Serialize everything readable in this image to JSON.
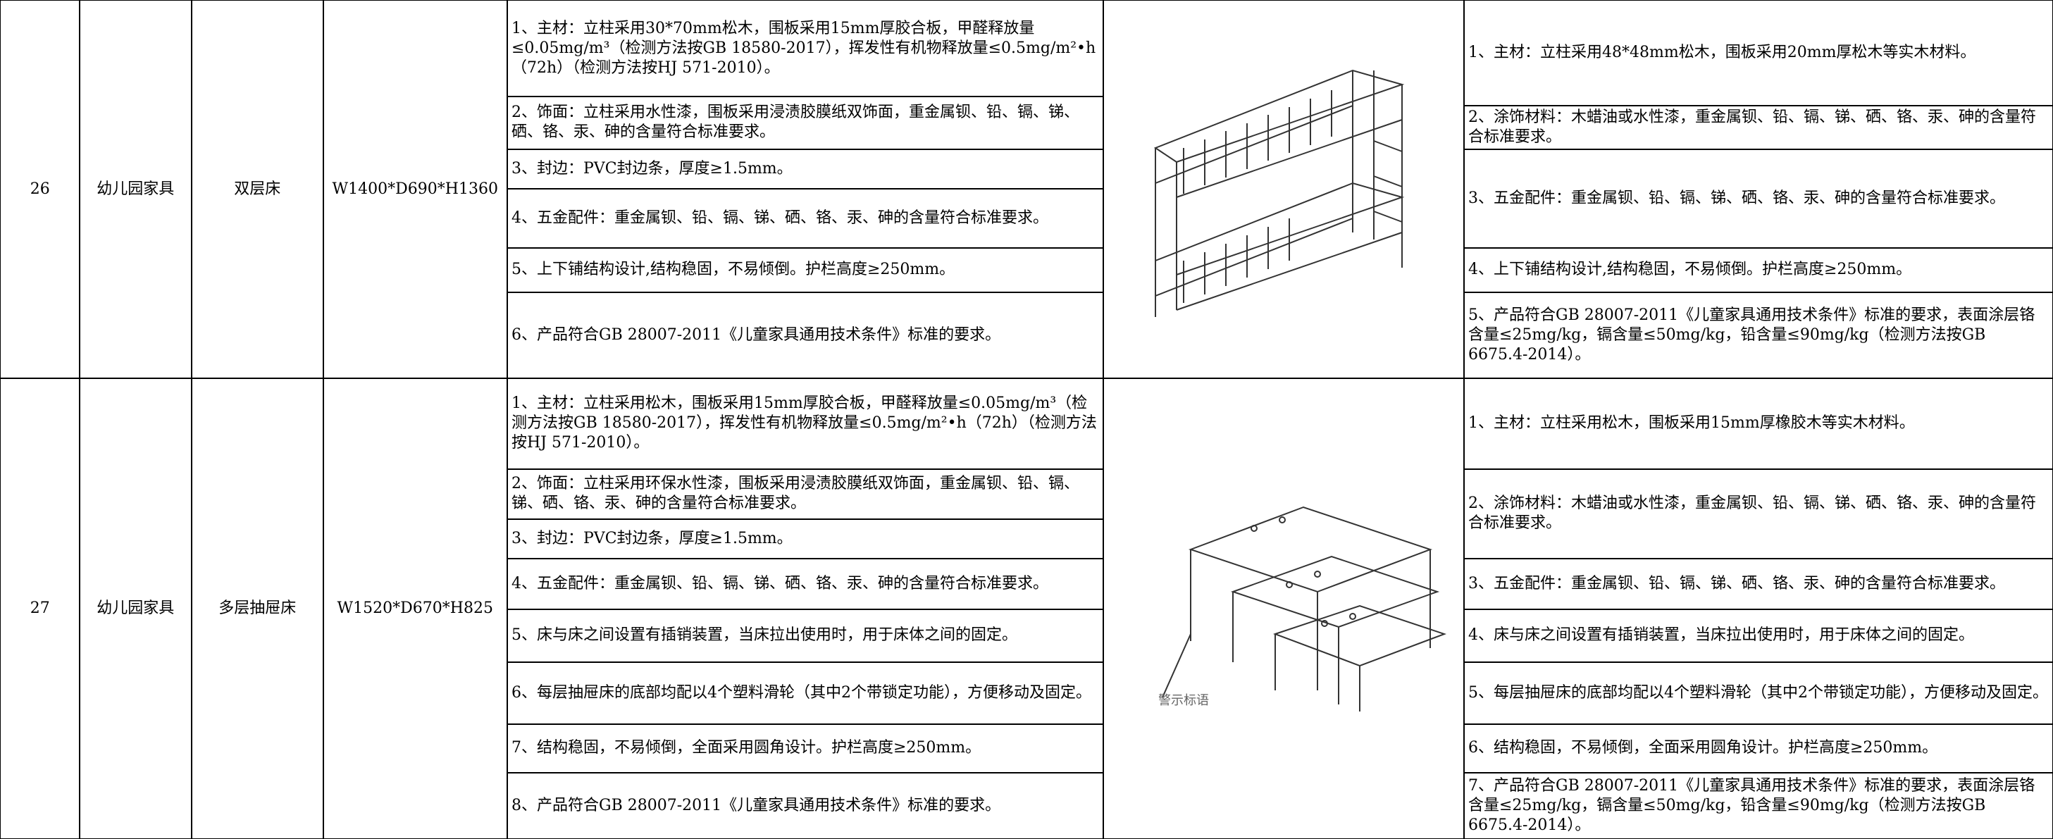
{
  "rows": [
    {
      "no": "26",
      "category": "幼儿园家具",
      "name": "双层床",
      "size": "W1400*D690*H1360",
      "specs": [
        "1、主材：立柱采用30*70mm松木，围板采用15mm厚胶合板，甲醛释放量≤0.05mg/m³（检测方法按GB 18580-2017），挥发性有机物释放量≤0.5mg/m²•h（72h）（检测方法按HJ 571-2010）。",
        "2、饰面：立柱采用水性漆，围板采用浸渍胶膜纸双饰面，重金属钡、铅、镉、锑、硒、铬、汞、砷的含量符合标准要求。",
        "3、封边：PVC封边条，厚度≥1.5mm。",
        "4、五金配件：重金属钡、铅、镉、锑、硒、铬、汞、砷的含量符合标准要求。",
        "5、上下铺结构设计,结构稳固，不易倾倒。护栏高度≥250mm。",
        "6、产品符合GB 28007-2011《儿童家具通用技术条件》标准的要求。"
      ],
      "specs_alt": [
        "1、主材：立柱采用48*48mm松木，围板采用20mm厚松木等实木材料。",
        "2、涂饰材料：木蜡油或水性漆，重金属钡、铅、镉、锑、硒、铬、汞、砷的含量符合标准要求。",
        "3、五金配件：重金属钡、铅、镉、锑、硒、铬、汞、砷的含量符合标准要求。",
        "4、上下铺结构设计,结构稳固，不易倾倒。护栏高度≥250mm。",
        "5、产品符合GB 28007-2011《儿童家具通用技术条件》标准的要求，表面涂层铬含量≤25mg/kg，镉含量≤50mg/kg，铅含量≤90mg/kg（检测方法按GB 6675.4-2014）。"
      ]
    },
    {
      "no": "27",
      "category": "幼儿园家具",
      "name": "多层抽屉床",
      "size": "W1520*D670*H825",
      "image_label": "警示标语",
      "specs": [
        "1、主材：立柱采用松木，围板采用15mm厚胶合板，甲醛释放量≤0.05mg/m³（检测方法按GB 18580-2017），挥发性有机物释放量≤0.5mg/m²•h（72h）（检测方法按HJ 571-2010）。",
        "2、饰面：立柱采用环保水性漆，围板采用浸渍胶膜纸双饰面，重金属钡、铅、镉、锑、硒、铬、汞、砷的含量符合标准要求。",
        "3、封边：PVC封边条，厚度≥1.5mm。",
        "4、五金配件：重金属钡、铅、镉、锑、硒、铬、汞、砷的含量符合标准要求。",
        "5、床与床之间设置有插销装置，当床拉出使用时，用于床体之间的固定。",
        "6、每层抽屉床的底部均配以4个塑料滑轮（其中2个带锁定功能），方便移动及固定。",
        "7、结构稳固，不易倾倒，全面采用圆角设计。护栏高度≥250mm。",
        "8、产品符合GB 28007-2011《儿童家具通用技术条件》标准的要求。"
      ],
      "specs_alt": [
        "1、主材：立柱采用松木，围板采用15mm厚橡胶木等实木材料。",
        "2、涂饰材料：木蜡油或水性漆，重金属钡、铅、镉、锑、硒、铬、汞、砷的含量符合标准要求。",
        "3、五金配件：重金属钡、铅、镉、锑、硒、铬、汞、砷的含量符合标准要求。",
        "4、床与床之间设置有插销装置，当床拉出使用时，用于床体之间的固定。",
        "5、每层抽屉床的底部均配以4个塑料滑轮（其中2个带锁定功能），方便移动及固定。",
        "6、结构稳固，不易倾倒，全面采用圆角设计。护栏高度≥250mm。",
        "7、产品符合GB 28007-2011《儿童家具通用技术条件》标准的要求，表面涂层铬含量≤25mg/kg，镉含量≤50mg/kg，铅含量≤90mg/kg（检测方法按GB 6675.4-2014）。"
      ]
    }
  ]
}
